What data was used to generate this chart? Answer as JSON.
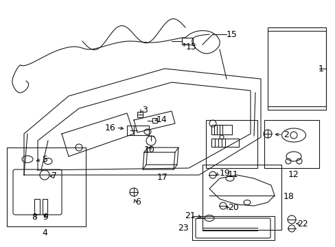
{
  "bg_color": "#ffffff",
  "line_color": "#1a1a1a",
  "fig_width": 4.89,
  "fig_height": 3.6,
  "dpi": 100,
  "label_fontsize": 9,
  "label_color": "#000000"
}
